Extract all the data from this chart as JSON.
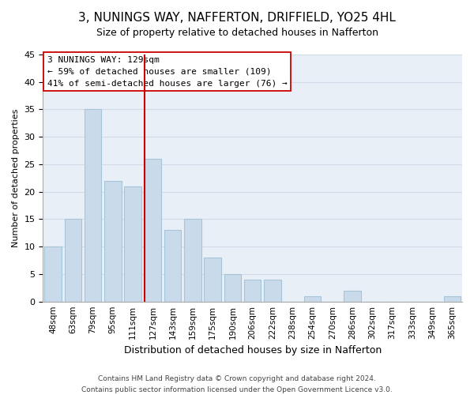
{
  "title": "3, NUNINGS WAY, NAFFERTON, DRIFFIELD, YO25 4HL",
  "subtitle": "Size of property relative to detached houses in Nafferton",
  "xlabel": "Distribution of detached houses by size in Nafferton",
  "ylabel": "Number of detached properties",
  "bar_labels": [
    "48sqm",
    "63sqm",
    "79sqm",
    "95sqm",
    "111sqm",
    "127sqm",
    "143sqm",
    "159sqm",
    "175sqm",
    "190sqm",
    "206sqm",
    "222sqm",
    "238sqm",
    "254sqm",
    "270sqm",
    "286sqm",
    "302sqm",
    "317sqm",
    "333sqm",
    "349sqm",
    "365sqm"
  ],
  "bar_values": [
    10,
    15,
    35,
    22,
    21,
    26,
    13,
    15,
    8,
    5,
    4,
    4,
    0,
    1,
    0,
    2,
    0,
    0,
    0,
    0,
    1
  ],
  "bar_color": "#c9daea",
  "bar_edge_color": "#a8c4d8",
  "highlight_bar_index": 5,
  "vline_color": "#cc0000",
  "ylim": [
    0,
    45
  ],
  "yticks": [
    0,
    5,
    10,
    15,
    20,
    25,
    30,
    35,
    40,
    45
  ],
  "annotation_title": "3 NUNINGS WAY: 129sqm",
  "annotation_line1": "← 59% of detached houses are smaller (109)",
  "annotation_line2": "41% of semi-detached houses are larger (76) →",
  "footer_line1": "Contains HM Land Registry data © Crown copyright and database right 2024.",
  "footer_line2": "Contains public sector information licensed under the Open Government Licence v3.0.",
  "grid_color": "#d0dce8",
  "background_color": "#e8eff7"
}
